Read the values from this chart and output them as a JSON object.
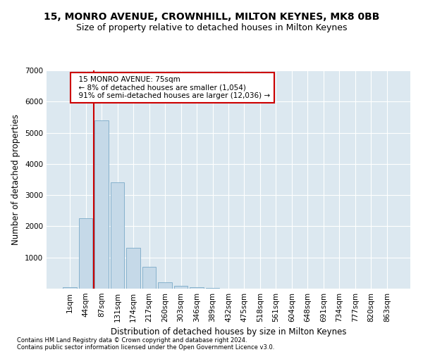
{
  "title1": "15, MONRO AVENUE, CROWNHILL, MILTON KEYNES, MK8 0BB",
  "title2": "Size of property relative to detached houses in Milton Keynes",
  "xlabel": "Distribution of detached houses by size in Milton Keynes",
  "ylabel": "Number of detached properties",
  "footnote1": "Contains HM Land Registry data © Crown copyright and database right 2024.",
  "footnote2": "Contains public sector information licensed under the Open Government Licence v3.0.",
  "bar_labels": [
    "1sqm",
    "44sqm",
    "87sqm",
    "131sqm",
    "174sqm",
    "217sqm",
    "260sqm",
    "303sqm",
    "346sqm",
    "389sqm",
    "432sqm",
    "475sqm",
    "518sqm",
    "561sqm",
    "604sqm",
    "648sqm",
    "691sqm",
    "734sqm",
    "777sqm",
    "820sqm",
    "863sqm"
  ],
  "bar_values": [
    50,
    2250,
    5400,
    3400,
    1300,
    700,
    200,
    100,
    50,
    20,
    5,
    2,
    1,
    0,
    0,
    0,
    0,
    0,
    0,
    0,
    0
  ],
  "bar_color": "#c5d9e8",
  "bar_edgecolor": "#7aaac8",
  "vline_x": 1.5,
  "vline_color": "#cc0000",
  "annotation_text": "  15 MONRO AVENUE: 75sqm\n  ← 8% of detached houses are smaller (1,054)\n  91% of semi-detached houses are larger (12,036) →",
  "annotation_box_color": "#ffffff",
  "annotation_box_edgecolor": "#cc0000",
  "ylim": [
    0,
    7000
  ],
  "yticks": [
    0,
    1000,
    2000,
    3000,
    4000,
    5000,
    6000,
    7000
  ],
  "plot_bg_color": "#dce8f0",
  "title1_fontsize": 10,
  "title2_fontsize": 9,
  "xlabel_fontsize": 8.5,
  "ylabel_fontsize": 8.5,
  "tick_fontsize": 7.5,
  "annot_fontsize": 7.5,
  "footnote_fontsize": 6
}
